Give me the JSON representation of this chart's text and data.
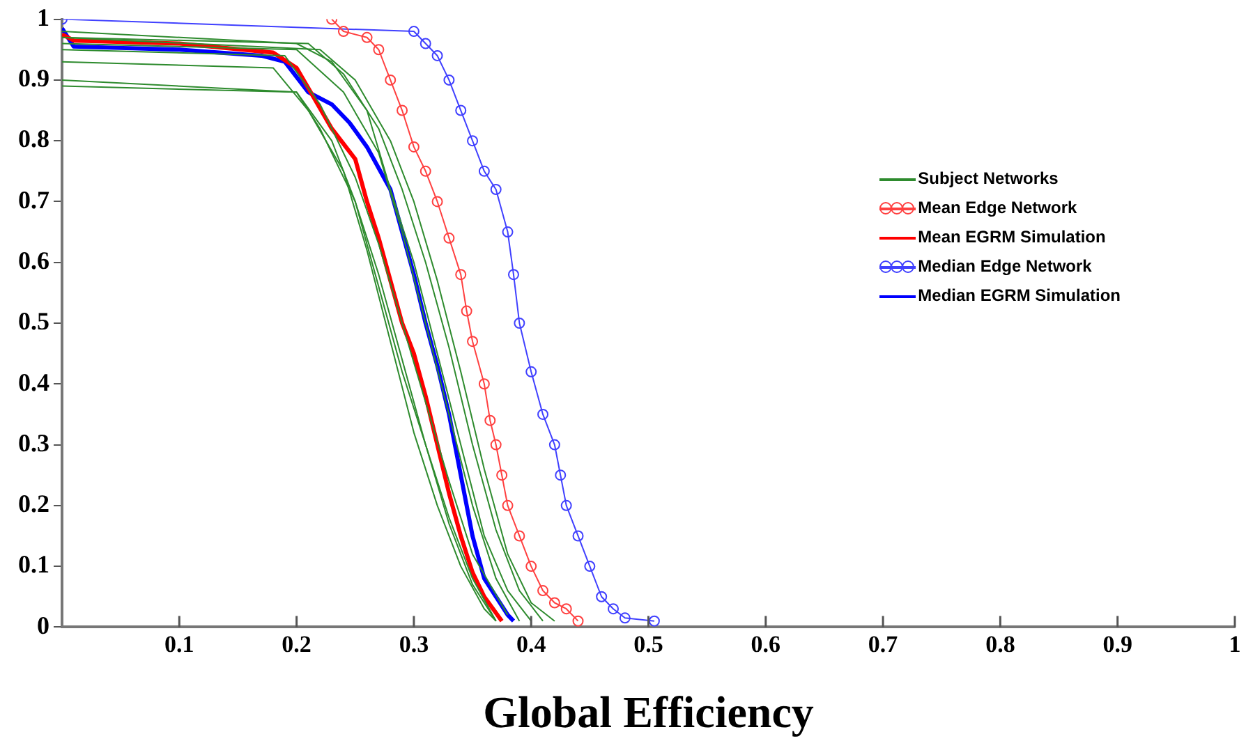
{
  "chart_data": {
    "type": "line",
    "xlabel": "Global Efficiency",
    "xlim": [
      0,
      1
    ],
    "ylim": [
      0,
      1
    ],
    "xticks": [
      0.1,
      0.2,
      0.3,
      0.4,
      0.5,
      0.6,
      0.7,
      0.8,
      0.9,
      1
    ],
    "yticks": [
      0,
      0.1,
      0.2,
      0.3,
      0.4,
      0.5,
      0.6,
      0.7,
      0.8,
      0.9,
      1
    ],
    "grid": false,
    "legend": "right",
    "marker": "none",
    "line_style": "solid",
    "series": [
      {
        "name": "Subject Networks",
        "color": "#2e8b2e",
        "x": [
          0,
          0.2,
          0.23,
          0.26,
          0.28,
          0.3,
          0.32,
          0.34,
          0.36,
          0.38,
          0.4
        ],
        "values": [
          0.98,
          0.96,
          0.93,
          0.85,
          0.72,
          0.6,
          0.45,
          0.3,
          0.15,
          0.06,
          0.01
        ]
      },
      {
        "color": "#2e8b2e",
        "x": [
          0,
          0.22,
          0.25,
          0.28,
          0.3,
          0.32,
          0.34,
          0.36,
          0.38,
          0.4,
          0.42
        ],
        "values": [
          0.97,
          0.95,
          0.9,
          0.8,
          0.7,
          0.57,
          0.42,
          0.26,
          0.12,
          0.04,
          0.01
        ]
      },
      {
        "color": "#2e8b2e",
        "x": [
          0,
          0.2,
          0.24,
          0.27,
          0.29,
          0.31,
          0.33,
          0.35,
          0.37,
          0.39
        ],
        "values": [
          0.96,
          0.95,
          0.88,
          0.78,
          0.65,
          0.5,
          0.35,
          0.2,
          0.08,
          0.01
        ]
      },
      {
        "color": "#2e8b2e",
        "x": [
          0,
          0.18,
          0.21,
          0.24,
          0.26,
          0.28,
          0.3,
          0.32,
          0.34,
          0.36,
          0.37
        ],
        "values": [
          0.93,
          0.92,
          0.85,
          0.75,
          0.62,
          0.47,
          0.32,
          0.2,
          0.1,
          0.03,
          0.01
        ]
      },
      {
        "color": "#2e8b2e",
        "x": [
          0,
          0.2,
          0.22,
          0.25,
          0.27,
          0.29,
          0.31,
          0.33,
          0.35,
          0.37
        ],
        "values": [
          0.9,
          0.88,
          0.82,
          0.7,
          0.58,
          0.44,
          0.3,
          0.18,
          0.08,
          0.01
        ]
      },
      {
        "color": "#2e8b2e",
        "x": [
          0,
          0.19,
          0.22,
          0.25,
          0.27,
          0.29,
          0.31,
          0.33,
          0.35,
          0.38
        ],
        "values": [
          0.95,
          0.94,
          0.86,
          0.74,
          0.63,
          0.5,
          0.37,
          0.24,
          0.12,
          0.02
        ]
      },
      {
        "color": "#2e8b2e",
        "x": [
          0,
          0.21,
          0.24,
          0.27,
          0.29,
          0.31,
          0.33,
          0.35,
          0.37,
          0.39,
          0.41
        ],
        "values": [
          0.97,
          0.96,
          0.91,
          0.82,
          0.72,
          0.6,
          0.46,
          0.3,
          0.16,
          0.06,
          0.01
        ]
      },
      {
        "color": "#2e8b2e",
        "x": [
          0,
          0.2,
          0.23,
          0.25,
          0.27,
          0.29,
          0.31,
          0.33,
          0.35,
          0.37
        ],
        "values": [
          0.89,
          0.88,
          0.8,
          0.7,
          0.56,
          0.42,
          0.3,
          0.17,
          0.07,
          0.01
        ]
      },
      {
        "name": "Mean Edge Network",
        "color": "#ff4040",
        "marker": "circle",
        "x": [
          0.23,
          0.24,
          0.26,
          0.27,
          0.28,
          0.29,
          0.3,
          0.31,
          0.32,
          0.33,
          0.34,
          0.345,
          0.35,
          0.36,
          0.365,
          0.37,
          0.375,
          0.38,
          0.39,
          0.4,
          0.41,
          0.42,
          0.43,
          0.44
        ],
        "values": [
          1,
          0.98,
          0.97,
          0.95,
          0.9,
          0.85,
          0.79,
          0.75,
          0.7,
          0.64,
          0.58,
          0.52,
          0.47,
          0.4,
          0.34,
          0.3,
          0.25,
          0.2,
          0.15,
          0.1,
          0.06,
          0.04,
          0.03,
          0.01
        ]
      },
      {
        "name": "Mean EGRM Simulation",
        "color": "#ff0000",
        "x": [
          0,
          0.01,
          0.1,
          0.18,
          0.2,
          0.215,
          0.23,
          0.25,
          0.26,
          0.27,
          0.28,
          0.29,
          0.3,
          0.31,
          0.32,
          0.33,
          0.34,
          0.35,
          0.36,
          0.375
        ],
        "values": [
          0.975,
          0.965,
          0.96,
          0.945,
          0.92,
          0.87,
          0.82,
          0.77,
          0.7,
          0.64,
          0.57,
          0.5,
          0.45,
          0.38,
          0.3,
          0.22,
          0.15,
          0.09,
          0.05,
          0.01
        ]
      },
      {
        "name": "Median Edge Network",
        "color": "#4040ff",
        "marker": "circle",
        "x": [
          0,
          0.3,
          0.31,
          0.32,
          0.33,
          0.34,
          0.35,
          0.36,
          0.37,
          0.38,
          0.385,
          0.39,
          0.4,
          0.41,
          0.42,
          0.425,
          0.43,
          0.44,
          0.45,
          0.46,
          0.47,
          0.48,
          0.505
        ],
        "values": [
          1,
          0.98,
          0.96,
          0.94,
          0.9,
          0.85,
          0.8,
          0.75,
          0.72,
          0.65,
          0.58,
          0.5,
          0.42,
          0.35,
          0.3,
          0.25,
          0.2,
          0.15,
          0.1,
          0.05,
          0.03,
          0.015,
          0.01
        ]
      },
      {
        "name": "Median EGRM Simulation",
        "color": "#0000ff",
        "x": [
          0,
          0.01,
          0.1,
          0.17,
          0.19,
          0.21,
          0.23,
          0.245,
          0.26,
          0.28,
          0.29,
          0.3,
          0.31,
          0.32,
          0.33,
          0.34,
          0.35,
          0.36,
          0.38,
          0.385
        ],
        "values": [
          0.985,
          0.955,
          0.95,
          0.94,
          0.93,
          0.88,
          0.86,
          0.83,
          0.79,
          0.72,
          0.65,
          0.58,
          0.5,
          0.43,
          0.35,
          0.25,
          0.15,
          0.08,
          0.02,
          0.01
        ]
      }
    ]
  }
}
